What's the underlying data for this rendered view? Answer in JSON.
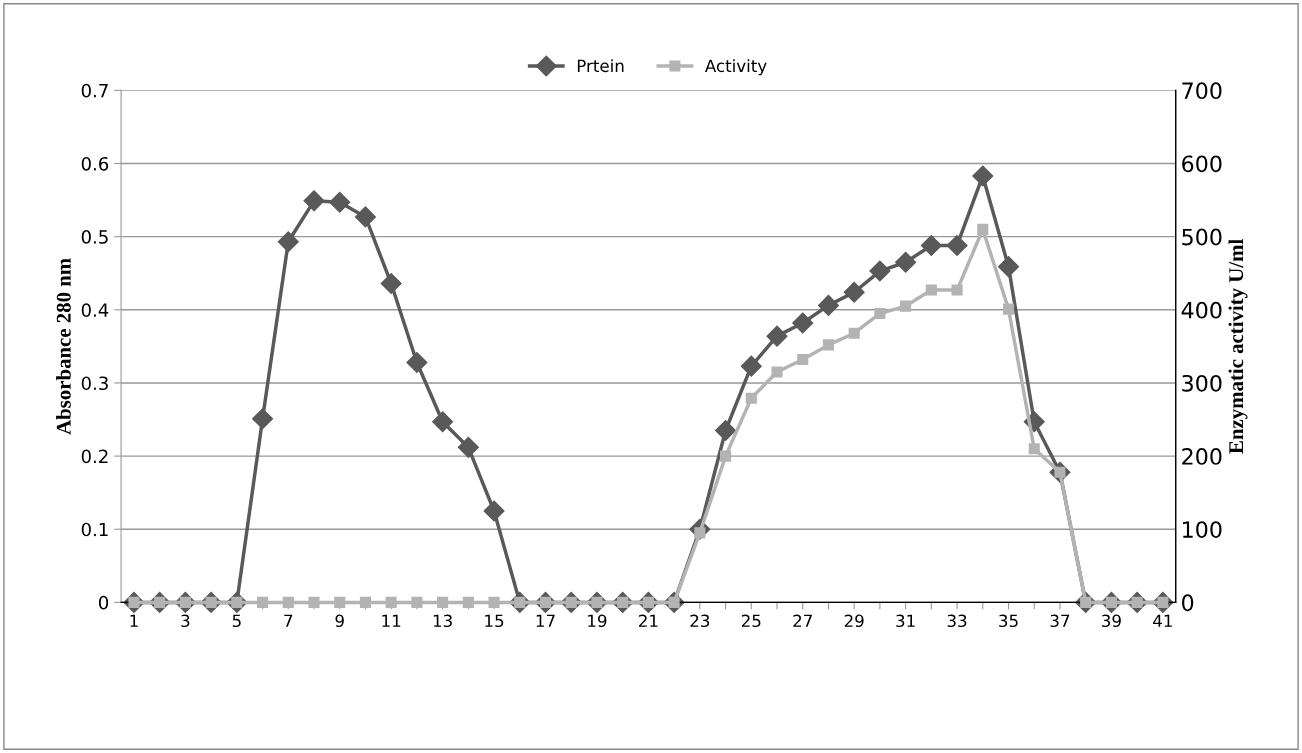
{
  "chart_data": {
    "type": "line",
    "categories": [
      "1",
      null,
      "3",
      null,
      "5",
      null,
      "7",
      null,
      "9",
      null,
      "11",
      null,
      "13",
      null,
      "15",
      null,
      "17",
      null,
      "19",
      null,
      "21",
      null,
      "23",
      null,
      "25",
      null,
      "27",
      null,
      "29",
      null,
      "31",
      null,
      "33",
      null,
      "35",
      null,
      "37",
      null,
      "39",
      null,
      "41"
    ],
    "ylabel": "Absorbance 280 nm",
    "y2label": "Enzymatic activity U/ml",
    "ylim": [
      0,
      0.7
    ],
    "yticks": [
      0,
      0.1,
      0.2,
      0.3,
      0.4,
      0.5,
      0.6,
      0.7
    ],
    "y2lim": [
      0,
      700
    ],
    "y2ticks": [
      0,
      100,
      200,
      300,
      400,
      500,
      600,
      700
    ],
    "grid": "y",
    "legend": "top",
    "series": [
      {
        "name": "Prtein",
        "color": "#595959",
        "marker": "diamond",
        "values": [
          0,
          0,
          0,
          0,
          0,
          0.251,
          0.493,
          0.549,
          0.547,
          0.527,
          0.436,
          0.328,
          0.247,
          0.212,
          0.125,
          0,
          0,
          0,
          0,
          0,
          0,
          0,
          0.1,
          0.235,
          0.323,
          0.364,
          0.382,
          0.406,
          0.424,
          0.453,
          0.465,
          0.488,
          0.488,
          0.583,
          0.459,
          0.247,
          0.178,
          0,
          0,
          0,
          0
        ]
      },
      {
        "name": "Activity",
        "color": "#b3b3b3",
        "marker": "square",
        "axis": "y2",
        "values": [
          0,
          0,
          0,
          0,
          0,
          0,
          0,
          0,
          0,
          0,
          0,
          0,
          0,
          0,
          0,
          0,
          0,
          0,
          0,
          0,
          0,
          0,
          95,
          200,
          279,
          315,
          332,
          352,
          368,
          395,
          405,
          427,
          427,
          510,
          401,
          210,
          178,
          0,
          0,
          0,
          0
        ]
      }
    ]
  }
}
